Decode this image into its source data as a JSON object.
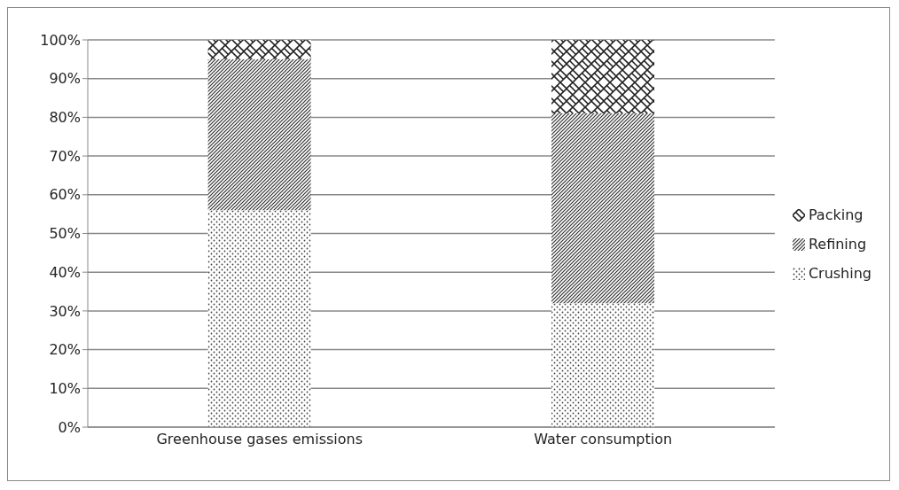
{
  "chart_data": {
    "type": "bar",
    "stacked": true,
    "categories": [
      "Greenhouse gases emissions",
      "Water consumption"
    ],
    "series": [
      {
        "name": "Crushing",
        "color": "#404040",
        "values": [
          56,
          32
        ]
      },
      {
        "name": "Refining",
        "color": "#303030",
        "values": [
          39,
          49
        ]
      },
      {
        "name": "Packing",
        "color": "#202020",
        "values": [
          5,
          19
        ]
      }
    ],
    "ylim": [
      0,
      100
    ],
    "yticks": [
      {
        "value": 0,
        "label": "0%"
      },
      {
        "value": 10,
        "label": "10%"
      },
      {
        "value": 20,
        "label": "20%"
      },
      {
        "value": 30,
        "label": "30%"
      },
      {
        "value": 40,
        "label": "40%"
      },
      {
        "value": 50,
        "label": "50%"
      },
      {
        "value": 60,
        "label": "60%"
      },
      {
        "value": 70,
        "label": "70%"
      },
      {
        "value": 80,
        "label": "80%"
      },
      {
        "value": 90,
        "label": "90%"
      },
      {
        "value": 100,
        "label": "100%"
      }
    ],
    "grid": "y",
    "legend": "right"
  }
}
